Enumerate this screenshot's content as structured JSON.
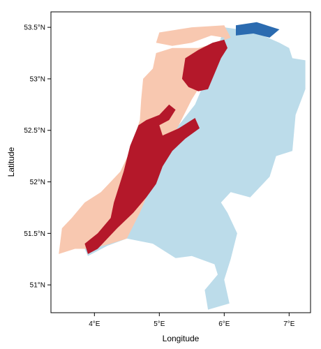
{
  "map": {
    "xlabel": "Longitude",
    "ylabel": "Latitude",
    "x_ticks": [
      {
        "value": 4,
        "label": "4°E"
      },
      {
        "value": 5,
        "label": "5°E"
      },
      {
        "value": 6,
        "label": "6°E"
      },
      {
        "value": 7,
        "label": "7°E"
      }
    ],
    "y_ticks": [
      {
        "value": 51.0,
        "label": "51°N"
      },
      {
        "value": 51.5,
        "label": "51.5°N"
      },
      {
        "value": 52.0,
        "label": "52°N"
      },
      {
        "value": 52.5,
        "label": "52.5°N"
      },
      {
        "value": 53.0,
        "label": "53°N"
      },
      {
        "value": 53.5,
        "label": "53.5°N"
      }
    ],
    "xlim": [
      3.33,
      7.33
    ],
    "ylim": [
      50.73,
      53.65
    ],
    "colors": {
      "light_blue": "#bcdcea",
      "peach": "#f8c8b0",
      "dark_red": "#b4182a",
      "dark_blue": "#2b6bb0"
    },
    "regions": {
      "light_blue": [
        [
          6.0,
          53.5
        ],
        [
          6.45,
          53.46
        ],
        [
          6.85,
          53.35
        ],
        [
          7.0,
          53.3
        ],
        [
          7.05,
          53.2
        ],
        [
          7.25,
          53.18
        ],
        [
          7.25,
          52.9
        ],
        [
          7.1,
          52.65
        ],
        [
          7.05,
          52.3
        ],
        [
          6.8,
          52.25
        ],
        [
          6.7,
          52.05
        ],
        [
          6.4,
          51.85
        ],
        [
          6.1,
          51.9
        ],
        [
          5.95,
          51.8
        ],
        [
          6.05,
          51.7
        ],
        [
          6.2,
          51.5
        ],
        [
          6.1,
          51.25
        ],
        [
          6.0,
          51.05
        ],
        [
          6.08,
          50.82
        ],
        [
          5.75,
          50.76
        ],
        [
          5.7,
          50.95
        ],
        [
          5.9,
          51.1
        ],
        [
          5.85,
          51.2
        ],
        [
          5.5,
          51.28
        ],
        [
          5.25,
          51.26
        ],
        [
          4.9,
          51.4
        ],
        [
          4.5,
          51.45
        ],
        [
          4.2,
          51.38
        ],
        [
          3.9,
          51.28
        ],
        [
          3.85,
          51.35
        ],
        [
          4.2,
          51.65
        ],
        [
          4.5,
          51.85
        ],
        [
          4.75,
          52.2
        ],
        [
          5.0,
          52.35
        ],
        [
          5.3,
          52.55
        ],
        [
          5.55,
          52.75
        ],
        [
          5.75,
          53.05
        ],
        [
          5.9,
          53.3
        ],
        [
          6.0,
          53.5
        ]
      ],
      "peach": [
        [
          5.0,
          53.45
        ],
        [
          5.5,
          53.5
        ],
        [
          6.0,
          53.52
        ],
        [
          6.1,
          53.4
        ],
        [
          5.9,
          53.35
        ],
        [
          5.6,
          53.3
        ],
        [
          5.2,
          53.3
        ],
        [
          4.95,
          53.25
        ],
        [
          4.9,
          53.1
        ],
        [
          4.75,
          53.0
        ],
        [
          4.72,
          52.8
        ],
        [
          4.7,
          52.6
        ],
        [
          4.55,
          52.3
        ],
        [
          4.4,
          52.1
        ],
        [
          4.1,
          51.9
        ],
        [
          3.85,
          51.8
        ],
        [
          3.65,
          51.65
        ],
        [
          3.5,
          51.55
        ],
        [
          3.45,
          51.3
        ],
        [
          3.7,
          51.35
        ],
        [
          3.95,
          51.35
        ],
        [
          4.25,
          51.4
        ],
        [
          4.5,
          51.45
        ],
        [
          4.7,
          51.7
        ],
        [
          4.9,
          52.0
        ],
        [
          5.1,
          52.3
        ],
        [
          5.3,
          52.55
        ],
        [
          5.5,
          52.8
        ],
        [
          5.7,
          53.0
        ],
        [
          5.85,
          53.2
        ],
        [
          6.0,
          53.3
        ],
        [
          6.0,
          53.4
        ],
        [
          5.8,
          53.42
        ],
        [
          5.5,
          53.35
        ],
        [
          5.2,
          53.32
        ],
        [
          4.95,
          53.35
        ],
        [
          5.0,
          53.45
        ]
      ],
      "dark_red_west": [
        [
          4.3,
          51.8
        ],
        [
          4.45,
          52.1
        ],
        [
          4.55,
          52.35
        ],
        [
          4.68,
          52.55
        ],
        [
          4.8,
          52.6
        ],
        [
          5.0,
          52.65
        ],
        [
          5.15,
          52.75
        ],
        [
          5.25,
          52.7
        ],
        [
          5.15,
          52.6
        ],
        [
          5.0,
          52.55
        ],
        [
          5.05,
          52.45
        ],
        [
          5.3,
          52.52
        ],
        [
          5.55,
          52.62
        ],
        [
          5.62,
          52.52
        ],
        [
          5.4,
          52.42
        ],
        [
          5.2,
          52.3
        ],
        [
          5.05,
          52.15
        ],
        [
          4.95,
          51.98
        ],
        [
          4.8,
          51.85
        ],
        [
          4.6,
          51.7
        ],
        [
          4.35,
          51.55
        ],
        [
          4.05,
          51.35
        ],
        [
          3.9,
          51.3
        ],
        [
          3.85,
          51.4
        ],
        [
          4.05,
          51.5
        ],
        [
          4.25,
          51.65
        ],
        [
          4.3,
          51.8
        ]
      ],
      "dark_red_north": [
        [
          5.35,
          53.0
        ],
        [
          5.4,
          53.2
        ],
        [
          5.6,
          53.28
        ],
        [
          5.82,
          53.35
        ],
        [
          6.0,
          53.38
        ],
        [
          6.05,
          53.3
        ],
        [
          5.95,
          53.2
        ],
        [
          5.85,
          53.05
        ],
        [
          5.75,
          52.9
        ],
        [
          5.6,
          52.88
        ],
        [
          5.45,
          52.92
        ],
        [
          5.35,
          53.0
        ]
      ],
      "dark_blue": [
        [
          6.18,
          53.52
        ],
        [
          6.5,
          53.55
        ],
        [
          6.85,
          53.48
        ],
        [
          6.7,
          53.4
        ],
        [
          6.45,
          53.44
        ],
        [
          6.18,
          53.42
        ],
        [
          6.18,
          53.52
        ]
      ]
    }
  }
}
